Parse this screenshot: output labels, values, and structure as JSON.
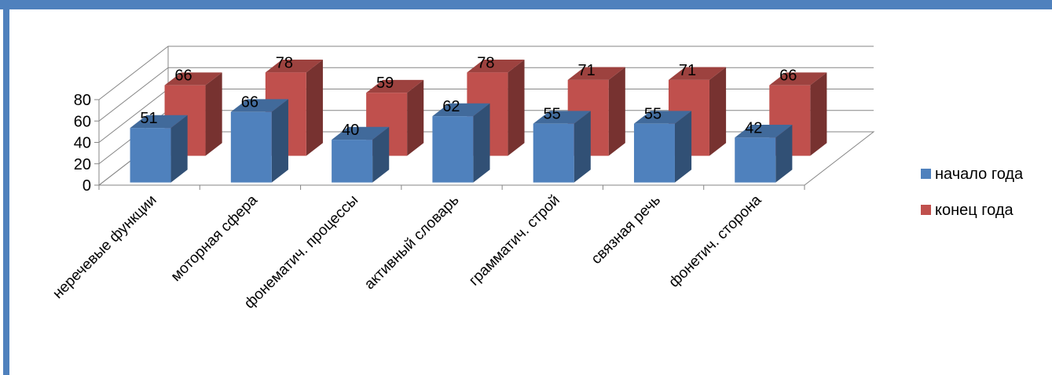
{
  "colors": {
    "frame": "#4F81BD",
    "series_start": "#4F81BD",
    "series_end": "#C0504D"
  },
  "chart_data": {
    "type": "bar",
    "style": "3d-clustered-column",
    "categories": [
      "неречевые функции",
      "моторная сфера",
      "фонематич. процессы",
      "активный словарь",
      "грамматич. строй",
      "связная речь",
      "фонетич. сторона"
    ],
    "series": [
      {
        "name": "начало года",
        "values": [
          51,
          66,
          40,
          62,
          55,
          55,
          42
        ],
        "color": "#4F81BD"
      },
      {
        "name": "конец года",
        "values": [
          66,
          78,
          59,
          78,
          71,
          71,
          66
        ],
        "color": "#C0504D"
      }
    ],
    "yticks": [
      0,
      20,
      40,
      60,
      80
    ],
    "ylim": [
      0,
      80
    ],
    "grid": true,
    "legend_position": "right",
    "data_labels": true
  }
}
